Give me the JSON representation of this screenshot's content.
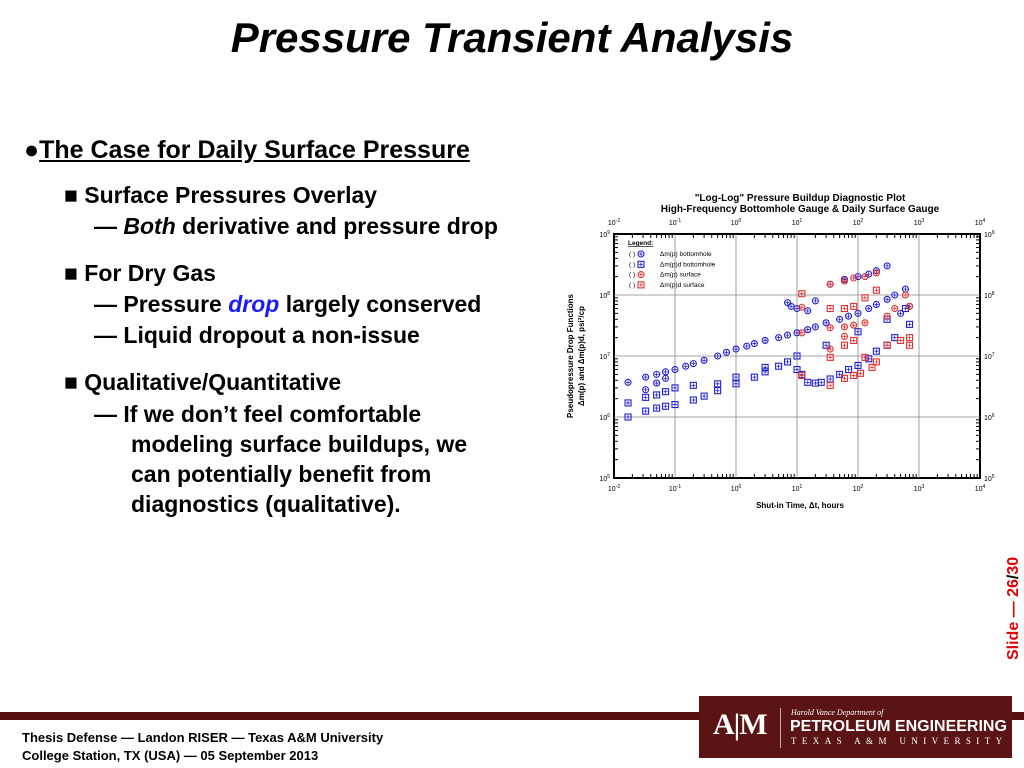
{
  "slide": {
    "title": "Pressure Transient Analysis",
    "heading": "The Case for Daily Surface Pressure",
    "sections": [
      {
        "label": "Surface Pressures Overlay",
        "sub": [
          {
            "em": "Both",
            "rest": " derivative and pressure drop"
          }
        ]
      },
      {
        "label": "For Dry Gas",
        "sub": [
          {
            "pre": "Pressure ",
            "accent": "drop",
            "rest": " largely conserved"
          },
          {
            "text": "Liquid dropout a non-issue"
          }
        ]
      },
      {
        "label": "Qualitative/Quantitative",
        "sub": [
          {
            "lines": [
              "If we don’t feel comfortable",
              "modeling surface buildups, we",
              "can potentially benefit from",
              "diagnostics (qualitative)."
            ]
          }
        ]
      }
    ],
    "dash": "—",
    "square_bullet": "■",
    "slide_number": {
      "prefix": "Slide — ",
      "current": "26",
      "sep": "/",
      "total": "30"
    },
    "accent_color": "#1a1aff",
    "slide_number_color": "#e00000"
  },
  "footer": {
    "line1": "Thesis Defense — Landon RISER — Texas A&M University",
    "line2": "College Station, TX (USA) — 05 September 2013",
    "logo": {
      "dept": "Harold Vance Department of",
      "name": "PETROLEUM ENGINEERING",
      "univ": "TEXAS A&M UNIVERSITY",
      "mark": "ATM"
    },
    "brand_color": "#5a1414"
  },
  "chart_data": {
    "type": "scatter",
    "title": "\"Log-Log\" Pressure Buildup Diagnostic Plot",
    "subtitle": "High-Frequency Bottomhole Gauge & Daily Surface Gauge",
    "xlabel": "Shut-in Time, Δt, hours",
    "ylabel_line1": "Pseudopressure Drop Functions",
    "ylabel_line2": "Δm(p) and Δm(p)d, psi²/cp",
    "xscale": "log",
    "yscale": "log",
    "xlim": [
      0.01,
      10000
    ],
    "ylim": [
      100000,
      1000000000
    ],
    "x_ticks": [
      "10-2",
      "10-1",
      "100",
      "101",
      "102",
      "103",
      "104"
    ],
    "y_ticks": [
      "105",
      "106",
      "107",
      "108",
      "109"
    ],
    "grid": true,
    "legend": {
      "title": "Legend:",
      "placement": "top-left"
    },
    "series": [
      {
        "name": "Δm(p) bottomhole",
        "marker": "circle",
        "color": "#2020d0",
        "points": [
          [
            0.017,
            3700000.0
          ],
          [
            0.033,
            4500000.0
          ],
          [
            0.05,
            5000000.0
          ],
          [
            0.07,
            5500000.0
          ],
          [
            0.1,
            6000000.0
          ],
          [
            0.15,
            6800000.0
          ],
          [
            0.2,
            7500000.0
          ],
          [
            0.3,
            8500000.0
          ],
          [
            0.5,
            10000000.0
          ],
          [
            0.7,
            11500000.0
          ],
          [
            1,
            13000000.0
          ],
          [
            1.5,
            14500000.0
          ],
          [
            2,
            16000000.0
          ],
          [
            3,
            18000000.0
          ],
          [
            5,
            20000000.0
          ],
          [
            7,
            22000000.0
          ],
          [
            10,
            24000000.0
          ],
          [
            15,
            27000000.0
          ],
          [
            20,
            30000000.0
          ],
          [
            30,
            35000000.0
          ],
          [
            50,
            40000000.0
          ],
          [
            70,
            45000000.0
          ],
          [
            100,
            50000000.0
          ],
          [
            150,
            60000000.0
          ],
          [
            200,
            70000000.0
          ],
          [
            300,
            85000000.0
          ],
          [
            400,
            100000000.0
          ],
          [
            600,
            125000000.0
          ],
          [
            0.033,
            2800000.0
          ],
          [
            0.05,
            3600000.0
          ],
          [
            0.07,
            4300000.0
          ],
          [
            7,
            75000000.0
          ],
          [
            8,
            65000000.0
          ],
          [
            10,
            60000000.0
          ],
          [
            15,
            55000000.0
          ],
          [
            20,
            80000000.0
          ],
          [
            35,
            150000000.0
          ],
          [
            60,
            180000000.0
          ],
          [
            100,
            200000000.0
          ],
          [
            150,
            220000000.0
          ],
          [
            200,
            250000000.0
          ],
          [
            300,
            300000000.0
          ],
          [
            700,
            65000000.0
          ],
          [
            500,
            50000000.0
          ]
        ]
      },
      {
        "name": "Δm(p)d bottomhole",
        "marker": "square",
        "color": "#2020d0",
        "points": [
          [
            0.017,
            1000000.0
          ],
          [
            0.017,
            1700000.0
          ],
          [
            0.033,
            1250000.0
          ],
          [
            0.05,
            1400000.0
          ],
          [
            0.07,
            1500000.0
          ],
          [
            0.1,
            1600000.0
          ],
          [
            0.2,
            1900000.0
          ],
          [
            0.3,
            2200000.0
          ],
          [
            0.5,
            2700000.0
          ],
          [
            1,
            3500000.0
          ],
          [
            2,
            4500000.0
          ],
          [
            3,
            5500000.0
          ],
          [
            5,
            6800000.0
          ],
          [
            7,
            8000000.0
          ],
          [
            10,
            6000000.0
          ],
          [
            12,
            5000000.0
          ],
          [
            15,
            3700000.0
          ],
          [
            20,
            3600000.0
          ],
          [
            25,
            3700000.0
          ],
          [
            35,
            4200000.0
          ],
          [
            50,
            5000000.0
          ],
          [
            70,
            6000000.0
          ],
          [
            100,
            7000000.0
          ],
          [
            150,
            9000000.0
          ],
          [
            200,
            12000000.0
          ],
          [
            300,
            15000000.0
          ],
          [
            400,
            20000000.0
          ],
          [
            700,
            33000000.0
          ],
          [
            0.033,
            2100000.0
          ],
          [
            0.05,
            2300000.0
          ],
          [
            0.07,
            2600000.0
          ],
          [
            0.1,
            3000000.0
          ],
          [
            0.2,
            3300000.0
          ],
          [
            0.5,
            3500000.0
          ],
          [
            1,
            4500000.0
          ],
          [
            3,
            6500000.0
          ],
          [
            10,
            10000000.0
          ],
          [
            30,
            15000000.0
          ],
          [
            100,
            25000000.0
          ],
          [
            300,
            40000000.0
          ],
          [
            600,
            60000000.0
          ]
        ]
      },
      {
        "name": "Δm(p) surface",
        "marker": "circle",
        "color": "#e03030",
        "points": [
          [
            12,
            63000000.0
          ],
          [
            12,
            24000000.0
          ],
          [
            35,
            150000000.0
          ],
          [
            35,
            29000000.0
          ],
          [
            35,
            13000000.0
          ],
          [
            60,
            170000000.0
          ],
          [
            60,
            30000000.0
          ],
          [
            60,
            21000000.0
          ],
          [
            85,
            190000000.0
          ],
          [
            85,
            32000000.0
          ],
          [
            130,
            200000000.0
          ],
          [
            130,
            35000000.0
          ],
          [
            200,
            230000000.0
          ],
          [
            300,
            45000000.0
          ],
          [
            400,
            60000000.0
          ],
          [
            600,
            100000000.0
          ],
          [
            700,
            65000000.0
          ]
        ]
      },
      {
        "name": "Δm(p)d surface",
        "marker": "square",
        "color": "#e03030",
        "points": [
          [
            12,
            105000000.0
          ],
          [
            12,
            4800000.0
          ],
          [
            35,
            60000000.0
          ],
          [
            35,
            9500000.0
          ],
          [
            35,
            3300000.0
          ],
          [
            60,
            60000000.0
          ],
          [
            60,
            15000000.0
          ],
          [
            60,
            4300000.0
          ],
          [
            85,
            65000000.0
          ],
          [
            85,
            18000000.0
          ],
          [
            85,
            4800000.0
          ],
          [
            110,
            5200000.0
          ],
          [
            130,
            90000000.0
          ],
          [
            130,
            9500000.0
          ],
          [
            170,
            6500000.0
          ],
          [
            200,
            120000000.0
          ],
          [
            200,
            8000000.0
          ],
          [
            300,
            15000000.0
          ],
          [
            500,
            18000000.0
          ],
          [
            700,
            20000000.0
          ],
          [
            700,
            15000000.0
          ]
        ]
      }
    ]
  }
}
